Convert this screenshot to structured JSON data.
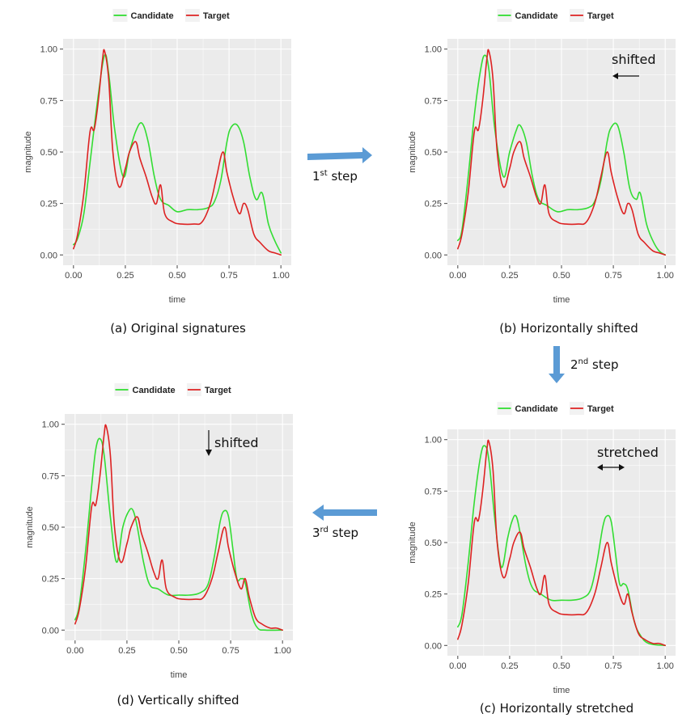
{
  "colors": {
    "panel_bg": "#EBEBEB",
    "grid": "#FFFFFF",
    "candidate": "#33DD33",
    "target": "#DD2222",
    "step_arrow": "#5B9BD5"
  },
  "steps": [
    {
      "ordinal": "1",
      "suffix": "st",
      "word": "step"
    },
    {
      "ordinal": "2",
      "suffix": "nd",
      "word": "step"
    },
    {
      "ordinal": "3",
      "suffix": "rd",
      "word": "step"
    }
  ],
  "chart_data": [
    {
      "id": "a",
      "type": "line",
      "caption": "(a) Original signatures",
      "xlabel": "time",
      "ylabel": "magnitude",
      "xlim": [
        0,
        1
      ],
      "ylim": [
        0,
        1
      ],
      "xticks": [
        "0.00",
        "0.25",
        "0.50",
        "0.75",
        "1.00"
      ],
      "yticks": [
        "0.00",
        "0.25",
        "0.50",
        "0.75",
        "1.00"
      ],
      "legend": {
        "position": "top",
        "entries": [
          "Candidate",
          "Target"
        ]
      },
      "annotation": null,
      "series": [
        {
          "name": "Candidate",
          "x": [
            0,
            0.02,
            0.05,
            0.08,
            0.12,
            0.15,
            0.17,
            0.2,
            0.24,
            0.27,
            0.3,
            0.33,
            0.36,
            0.39,
            0.42,
            0.46,
            0.5,
            0.55,
            0.6,
            0.65,
            0.68,
            0.71,
            0.74,
            0.76,
            0.79,
            0.82,
            0.85,
            0.88,
            0.91,
            0.94,
            0.97,
            1.0
          ],
          "y": [
            0.05,
            0.08,
            0.2,
            0.45,
            0.78,
            0.97,
            0.88,
            0.6,
            0.38,
            0.5,
            0.6,
            0.64,
            0.55,
            0.38,
            0.27,
            0.24,
            0.21,
            0.22,
            0.22,
            0.23,
            0.26,
            0.36,
            0.55,
            0.62,
            0.63,
            0.55,
            0.38,
            0.27,
            0.3,
            0.15,
            0.07,
            0.01
          ]
        },
        {
          "name": "Target",
          "x": [
            0,
            0.02,
            0.05,
            0.08,
            0.1,
            0.12,
            0.14,
            0.15,
            0.17,
            0.19,
            0.22,
            0.25,
            0.27,
            0.3,
            0.32,
            0.35,
            0.38,
            0.4,
            0.42,
            0.44,
            0.48,
            0.52,
            0.58,
            0.62,
            0.66,
            0.69,
            0.72,
            0.74,
            0.77,
            0.8,
            0.82,
            0.84,
            0.87,
            0.9,
            0.94,
            0.97,
            1.0
          ],
          "y": [
            0.03,
            0.1,
            0.3,
            0.6,
            0.61,
            0.75,
            0.95,
            0.99,
            0.85,
            0.5,
            0.33,
            0.42,
            0.5,
            0.55,
            0.47,
            0.38,
            0.28,
            0.25,
            0.34,
            0.2,
            0.16,
            0.15,
            0.15,
            0.16,
            0.25,
            0.38,
            0.5,
            0.4,
            0.28,
            0.2,
            0.25,
            0.22,
            0.1,
            0.06,
            0.02,
            0.01,
            0.0
          ]
        }
      ]
    },
    {
      "id": "b",
      "type": "line",
      "caption": "(b) Horizontally shifted",
      "xlabel": "time",
      "ylabel": "magnitude",
      "xlim": [
        0,
        1
      ],
      "ylim": [
        0,
        1
      ],
      "xticks": [
        "0.00",
        "0.25",
        "0.50",
        "0.75",
        "1.00"
      ],
      "yticks": [
        "0.00",
        "0.25",
        "0.50",
        "0.75",
        "1.00"
      ],
      "legend": {
        "position": "top",
        "entries": [
          "Candidate",
          "Target"
        ]
      },
      "annotation": {
        "text": "shifted",
        "arrow": "left"
      },
      "series": [
        {
          "name": "Candidate",
          "x": [
            0,
            0.02,
            0.05,
            0.08,
            0.11,
            0.13,
            0.15,
            0.18,
            0.22,
            0.25,
            0.28,
            0.3,
            0.33,
            0.36,
            0.39,
            0.43,
            0.48,
            0.53,
            0.58,
            0.63,
            0.66,
            0.69,
            0.72,
            0.74,
            0.77,
            0.8,
            0.83,
            0.86,
            0.88,
            0.91,
            0.94,
            0.97,
            1.0
          ],
          "y": [
            0.07,
            0.12,
            0.38,
            0.68,
            0.9,
            0.97,
            0.9,
            0.6,
            0.38,
            0.5,
            0.6,
            0.63,
            0.55,
            0.38,
            0.27,
            0.24,
            0.21,
            0.22,
            0.22,
            0.23,
            0.26,
            0.36,
            0.55,
            0.62,
            0.63,
            0.5,
            0.32,
            0.27,
            0.3,
            0.15,
            0.07,
            0.02,
            0.0
          ]
        },
        {
          "name": "Target",
          "x": [
            0,
            0.02,
            0.05,
            0.08,
            0.1,
            0.12,
            0.14,
            0.15,
            0.17,
            0.19,
            0.22,
            0.25,
            0.27,
            0.3,
            0.32,
            0.35,
            0.38,
            0.4,
            0.42,
            0.44,
            0.48,
            0.52,
            0.58,
            0.62,
            0.66,
            0.69,
            0.72,
            0.74,
            0.77,
            0.8,
            0.82,
            0.84,
            0.87,
            0.9,
            0.94,
            0.97,
            1.0
          ],
          "y": [
            0.03,
            0.1,
            0.3,
            0.6,
            0.61,
            0.75,
            0.95,
            0.99,
            0.85,
            0.5,
            0.33,
            0.42,
            0.5,
            0.55,
            0.47,
            0.38,
            0.28,
            0.25,
            0.34,
            0.2,
            0.16,
            0.15,
            0.15,
            0.16,
            0.25,
            0.38,
            0.5,
            0.4,
            0.28,
            0.2,
            0.25,
            0.22,
            0.1,
            0.06,
            0.02,
            0.01,
            0.0
          ]
        }
      ]
    },
    {
      "id": "c",
      "type": "line",
      "caption": "(c) Horizontally stretched",
      "xlabel": "time",
      "ylabel": "magnitude",
      "xlim": [
        0,
        1
      ],
      "ylim": [
        0,
        1
      ],
      "xticks": [
        "0.00",
        "0.25",
        "0.50",
        "0.75",
        "1.00"
      ],
      "yticks": [
        "0.00",
        "0.25",
        "0.50",
        "0.75",
        "1.00"
      ],
      "legend": {
        "position": "top",
        "entries": [
          "Candidate",
          "Target"
        ]
      },
      "annotation": {
        "text": "stretched",
        "arrow": "both"
      },
      "series": [
        {
          "name": "Candidate",
          "x": [
            0,
            0.02,
            0.05,
            0.08,
            0.11,
            0.13,
            0.15,
            0.18,
            0.21,
            0.24,
            0.26,
            0.28,
            0.3,
            0.33,
            0.36,
            0.4,
            0.45,
            0.5,
            0.55,
            0.6,
            0.64,
            0.67,
            0.7,
            0.72,
            0.74,
            0.76,
            0.78,
            0.8,
            0.82,
            0.85,
            0.88,
            0.92,
            1.0
          ],
          "y": [
            0.09,
            0.15,
            0.4,
            0.7,
            0.92,
            0.97,
            0.9,
            0.6,
            0.38,
            0.52,
            0.6,
            0.63,
            0.55,
            0.38,
            0.28,
            0.25,
            0.22,
            0.22,
            0.22,
            0.23,
            0.27,
            0.4,
            0.58,
            0.63,
            0.6,
            0.45,
            0.3,
            0.3,
            0.27,
            0.12,
            0.05,
            0.01,
            0.0
          ]
        },
        {
          "name": "Target",
          "x": [
            0,
            0.02,
            0.05,
            0.08,
            0.1,
            0.12,
            0.14,
            0.15,
            0.17,
            0.19,
            0.22,
            0.25,
            0.27,
            0.3,
            0.32,
            0.35,
            0.38,
            0.4,
            0.42,
            0.44,
            0.48,
            0.52,
            0.58,
            0.62,
            0.66,
            0.69,
            0.72,
            0.74,
            0.77,
            0.8,
            0.82,
            0.84,
            0.87,
            0.9,
            0.94,
            0.97,
            1.0
          ],
          "y": [
            0.03,
            0.1,
            0.3,
            0.6,
            0.61,
            0.75,
            0.95,
            0.99,
            0.85,
            0.5,
            0.33,
            0.42,
            0.5,
            0.55,
            0.47,
            0.38,
            0.28,
            0.25,
            0.34,
            0.2,
            0.16,
            0.15,
            0.15,
            0.16,
            0.25,
            0.38,
            0.5,
            0.4,
            0.28,
            0.2,
            0.25,
            0.16,
            0.06,
            0.03,
            0.01,
            0.01,
            0.0
          ]
        }
      ]
    },
    {
      "id": "d",
      "type": "line",
      "caption": "(d) Vertically shifted",
      "xlabel": "time",
      "ylabel": "magnitude",
      "xlim": [
        0,
        1
      ],
      "ylim": [
        0,
        1
      ],
      "xticks": [
        "0.00",
        "0.25",
        "0.50",
        "0.75",
        "1.00"
      ],
      "yticks": [
        "0.00",
        "0.25",
        "0.50",
        "0.75",
        "1.00"
      ],
      "legend": {
        "position": "top",
        "entries": [
          "Candidate",
          "Target"
        ]
      },
      "annotation": {
        "text": "shifted",
        "arrow": "down"
      },
      "series": [
        {
          "name": "Candidate",
          "x": [
            0,
            0.02,
            0.05,
            0.08,
            0.1,
            0.12,
            0.14,
            0.17,
            0.2,
            0.23,
            0.26,
            0.28,
            0.3,
            0.33,
            0.36,
            0.4,
            0.45,
            0.5,
            0.55,
            0.6,
            0.64,
            0.67,
            0.7,
            0.72,
            0.74,
            0.76,
            0.78,
            0.8,
            0.82,
            0.85,
            0.88,
            0.92,
            1.0
          ],
          "y": [
            0.05,
            0.12,
            0.38,
            0.7,
            0.88,
            0.93,
            0.85,
            0.55,
            0.33,
            0.5,
            0.58,
            0.58,
            0.5,
            0.33,
            0.22,
            0.2,
            0.17,
            0.17,
            0.17,
            0.18,
            0.22,
            0.35,
            0.53,
            0.58,
            0.55,
            0.4,
            0.25,
            0.25,
            0.23,
            0.08,
            0.01,
            0.0,
            0.0
          ]
        },
        {
          "name": "Target",
          "x": [
            0,
            0.02,
            0.05,
            0.08,
            0.1,
            0.12,
            0.14,
            0.15,
            0.17,
            0.19,
            0.22,
            0.25,
            0.27,
            0.3,
            0.32,
            0.35,
            0.38,
            0.4,
            0.42,
            0.44,
            0.48,
            0.52,
            0.58,
            0.62,
            0.66,
            0.69,
            0.72,
            0.74,
            0.77,
            0.8,
            0.82,
            0.84,
            0.87,
            0.9,
            0.94,
            0.97,
            1.0
          ],
          "y": [
            0.03,
            0.1,
            0.3,
            0.6,
            0.61,
            0.75,
            0.95,
            0.99,
            0.85,
            0.5,
            0.33,
            0.42,
            0.5,
            0.55,
            0.47,
            0.38,
            0.28,
            0.25,
            0.34,
            0.2,
            0.16,
            0.15,
            0.15,
            0.16,
            0.25,
            0.38,
            0.5,
            0.4,
            0.28,
            0.2,
            0.25,
            0.16,
            0.06,
            0.03,
            0.01,
            0.01,
            0.0
          ]
        }
      ]
    }
  ]
}
